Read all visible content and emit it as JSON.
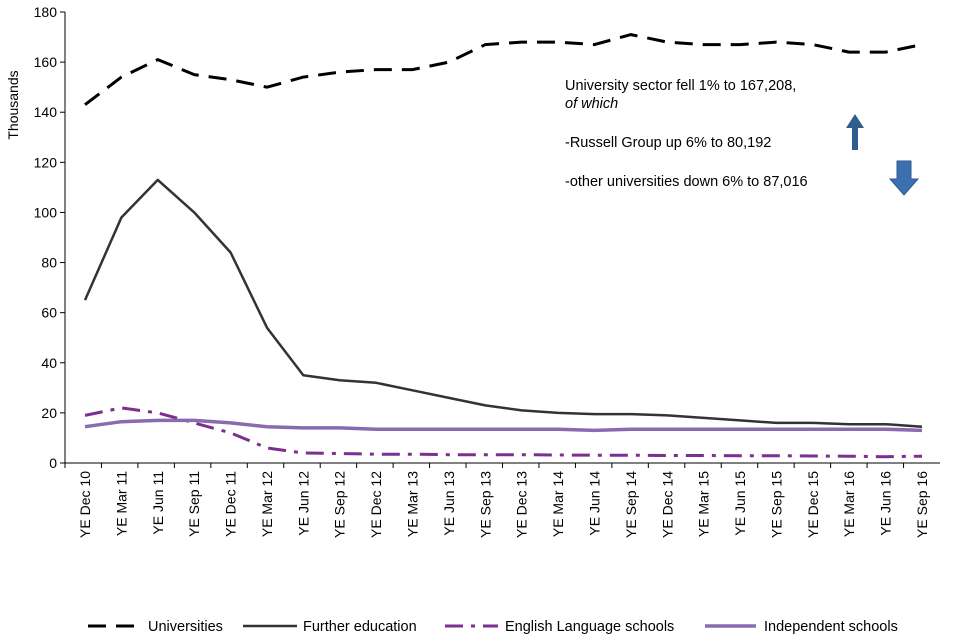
{
  "chart_data": {
    "type": "line",
    "ylabel": "Thousands",
    "ylim": [
      0,
      180
    ],
    "yticks": [
      0,
      20,
      40,
      60,
      80,
      100,
      120,
      140,
      160,
      180
    ],
    "categories": [
      "YE Dec 10",
      "YE Mar 11",
      "YE Jun 11",
      "YE Sep 11",
      "YE Dec 11",
      "YE Mar 12",
      "YE Jun 12",
      "YE Sep 12",
      "YE Dec 12",
      "YE Mar 13",
      "YE Jun 13",
      "YE Sep 13",
      "YE Dec 13",
      "YE Mar 14",
      "YE Jun 14",
      "YE Sep 14",
      "YE Dec 14",
      "YE Mar 15",
      "YE Jun 15",
      "YE Sep 15",
      "YE Dec 15",
      "YE Mar 16",
      "YE Jun 16",
      "YE Sep 16"
    ],
    "series": [
      {
        "name": "Universities",
        "color": "#000000",
        "style": "dash",
        "values": [
          143,
          154,
          161,
          155,
          153,
          150,
          154,
          156,
          157,
          157,
          160,
          167,
          168,
          168,
          167,
          171,
          168,
          167,
          167,
          168,
          167,
          164,
          164,
          167
        ]
      },
      {
        "name": "Further education",
        "color": "#333333",
        "style": "solid",
        "values": [
          65,
          98,
          113,
          100,
          84,
          54,
          35,
          33,
          32,
          29,
          26,
          23,
          21,
          20,
          19.5,
          19.5,
          19,
          18,
          17,
          16,
          16,
          15.5,
          15.5,
          14.5
        ]
      },
      {
        "name": "English Language schools",
        "color": "#7B2F8E",
        "style": "dashdot",
        "values": [
          19,
          22,
          20,
          16,
          12,
          6,
          4,
          3.8,
          3.5,
          3.5,
          3.3,
          3.3,
          3.3,
          3.2,
          3.1,
          3.1,
          3.0,
          3.0,
          2.9,
          2.9,
          2.8,
          2.7,
          2.5,
          2.7
        ]
      },
      {
        "name": "Independent schools",
        "color": "#8A6BB0",
        "style": "solid",
        "values": [
          14.5,
          16.5,
          17,
          17,
          16,
          14.5,
          14,
          14,
          13.5,
          13.5,
          13.5,
          13.5,
          13.5,
          13.5,
          13,
          13.5,
          13.5,
          13.5,
          13.5,
          13.5,
          13.5,
          13.5,
          13.5,
          13
        ]
      }
    ],
    "annotations": {
      "line1": "University sector fell 1% to 167,208,",
      "line2": "of which",
      "line3": "-Russell Group up 6% to 80,192",
      "line4": "-other universities down 6% to 87,016",
      "arrow_up_color": "#2E5D8E",
      "arrow_down_color": "#3A6FB0"
    },
    "legend": {
      "placement": "bottom",
      "entries": [
        "Universities",
        "Further education",
        "English Language schools",
        "Independent schools"
      ]
    },
    "grid": false
  }
}
